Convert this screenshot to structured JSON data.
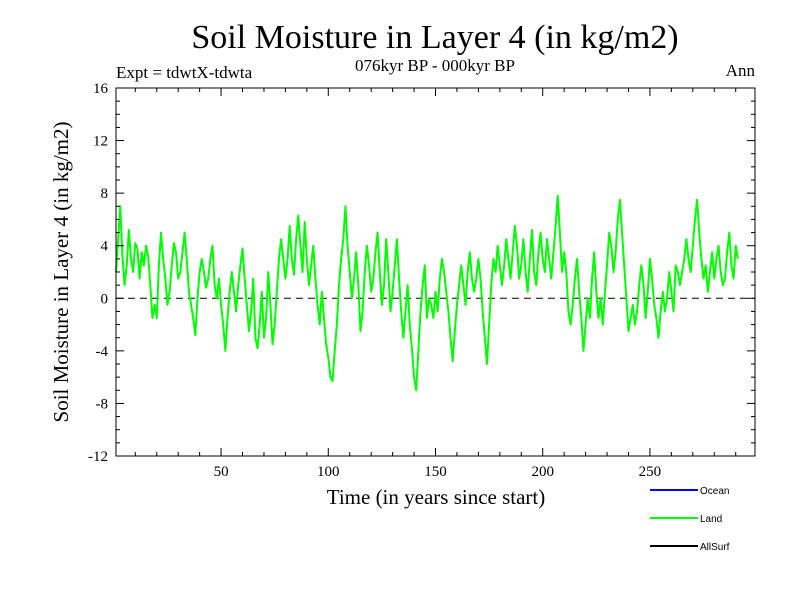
{
  "chart_data": {
    "type": "line",
    "title": "Soil Moisture in Layer 4 (in kg/m2)",
    "subtitle": "076kyr BP - 000kyr BP",
    "experiment": "Expt = tdwtX-tdwta",
    "season": "Ann",
    "xlabel": "Time (in years since start)",
    "ylabel": "Soil Moisture in Layer 4 (in kg/m2)",
    "xlim": [
      1,
      299
    ],
    "ylim": [
      -12,
      16
    ],
    "x_ticks": [
      "50",
      "100",
      "150",
      "200",
      "250"
    ],
    "x_tick_values": [
      50,
      100,
      150,
      200,
      250
    ],
    "y_ticks": [
      "16",
      "12",
      "8",
      "4",
      "0",
      "-4",
      "-8",
      "-12"
    ],
    "y_tick_values": [
      16,
      12,
      8,
      4,
      0,
      -4,
      -8,
      -12
    ],
    "zero_line": true,
    "legend": [
      {
        "name": "Ocean",
        "label": "Ocean",
        "color": "#0000ff"
      },
      {
        "name": "Land",
        "label": "Land",
        "color": "#00ff00"
      },
      {
        "name": "AllSurf",
        "label": "AllSurf",
        "color": "#000000"
      }
    ],
    "series": [
      {
        "name": "Land",
        "color": "#00ff00",
        "x_start": 1,
        "x_step": 1,
        "values": [
          2.0,
          4.5,
          7.0,
          3.2,
          1.0,
          2.5,
          5.2,
          3.0,
          2.0,
          4.2,
          3.8,
          1.5,
          3.5,
          2.5,
          4.0,
          3.2,
          1.0,
          -1.5,
          -0.5,
          -1.5,
          2.5,
          5.0,
          3.0,
          1.5,
          -0.5,
          0.5,
          2.5,
          4.2,
          3.5,
          1.5,
          2.0,
          3.5,
          5.0,
          3.0,
          0.5,
          -0.5,
          -1.5,
          -2.8,
          0.0,
          2.0,
          3.0,
          2.0,
          0.8,
          1.5,
          3.0,
          4.0,
          1.0,
          0.0,
          1.5,
          -0.5,
          -2.0,
          -4.0,
          -1.5,
          0.5,
          2.0,
          0.5,
          -1.0,
          1.0,
          2.5,
          3.8,
          1.5,
          -0.5,
          -2.5,
          -1.0,
          1.5,
          -3.0,
          -3.8,
          -2.0,
          0.5,
          -3.0,
          -1.5,
          2.0,
          -0.5,
          -3.5,
          -2.0,
          0.5,
          3.0,
          4.5,
          3.0,
          1.5,
          3.0,
          5.5,
          3.0,
          1.8,
          4.5,
          6.3,
          4.0,
          2.0,
          5.8,
          3.0,
          1.0,
          2.5,
          4.0,
          1.5,
          -0.5,
          -2.0,
          0.5,
          -1.5,
          -3.5,
          -4.5,
          -6.0,
          -6.3,
          -4.0,
          -2.0,
          1.0,
          3.0,
          4.5,
          7.0,
          4.0,
          2.0,
          0.0,
          1.5,
          3.5,
          1.0,
          -2.5,
          -1.0,
          2.0,
          4.0,
          2.5,
          0.5,
          1.5,
          3.5,
          5.0,
          2.0,
          -0.5,
          1.0,
          4.5,
          2.0,
          -1.0,
          0.5,
          2.5,
          4.5,
          1.5,
          -1.0,
          -3.0,
          -1.0,
          1.0,
          -2.0,
          -3.8,
          -6.0,
          -7.0,
          -4.0,
          -1.0,
          1.0,
          2.5,
          -1.5,
          0.0,
          -0.5,
          -1.5,
          0.5,
          -1.0,
          1.5,
          3.0,
          2.0,
          0.5,
          -1.0,
          -3.0,
          -4.8,
          -2.5,
          -0.5,
          1.0,
          2.5,
          1.0,
          -0.5,
          2.0,
          3.5,
          1.5,
          0.5,
          1.5,
          3.0,
          1.5,
          -1.0,
          -3.0,
          -5.0,
          -2.0,
          1.0,
          3.0,
          2.0,
          4.0,
          2.5,
          1.0,
          2.5,
          4.5,
          3.0,
          1.5,
          3.5,
          5.5,
          4.0,
          1.5,
          2.5,
          4.5,
          2.0,
          0.5,
          3.0,
          5.2,
          2.0,
          1.0,
          3.5,
          5.0,
          3.0,
          2.0,
          4.5,
          3.0,
          1.5,
          3.5,
          5.5,
          7.8,
          5.0,
          2.0,
          3.5,
          2.0,
          -1.0,
          -2.0,
          -0.5,
          1.5,
          3.0,
          0.5,
          -1.5,
          -4.0,
          -2.0,
          0.0,
          -1.5,
          1.5,
          3.5,
          0.5,
          -1.5,
          0.0,
          -2.0,
          0.5,
          2.5,
          5.0,
          4.0,
          2.0,
          3.5,
          6.0,
          7.5,
          5.0,
          2.5,
          0.0,
          -2.5,
          -1.5,
          -0.5,
          -2.0,
          -1.0,
          1.0,
          2.5,
          1.0,
          -1.5,
          0.5,
          3.0,
          1.5,
          -0.5,
          -1.5,
          -3.0,
          -1.0,
          0.5,
          -1.0,
          0.0,
          2.0,
          0.5,
          -1.0,
          2.5,
          2.0,
          1.0,
          2.0,
          3.0,
          4.5,
          3.0,
          2.0,
          4.0,
          6.0,
          7.5,
          5.0,
          3.0,
          1.5,
          2.5,
          0.5,
          2.0,
          3.5,
          1.5,
          3.0,
          4.0,
          2.0,
          1.0,
          1.5,
          3.5,
          5.0,
          2.5,
          1.5,
          4.0,
          3.0
        ]
      }
    ]
  }
}
